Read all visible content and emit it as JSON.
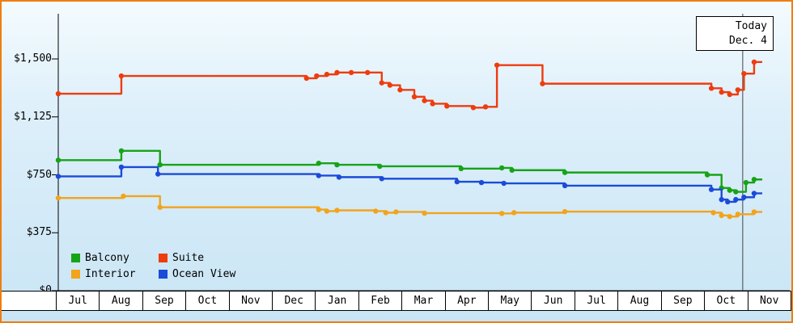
{
  "panel": {
    "border_color": "#ef7d10"
  },
  "today_box": {
    "line1": "Today",
    "line2": "Dec. 4"
  },
  "chart_data": {
    "type": "line",
    "step": true,
    "title": "",
    "xlabel": "",
    "ylabel": "",
    "ylim": [
      0,
      1500
    ],
    "x_max": 17.3,
    "today_x": 16.82,
    "yticks": [
      {
        "label": "$1,500",
        "value": 1500
      },
      {
        "label": "$1,125",
        "value": 1125
      },
      {
        "label": "$750",
        "value": 750
      },
      {
        "label": "$375",
        "value": 375
      },
      {
        "label": "$0",
        "value": 0
      }
    ],
    "months": [
      "Jul",
      "Aug",
      "Sep",
      "Oct",
      "Nov",
      "Dec",
      "Jan",
      "Feb",
      "Mar",
      "Apr",
      "May",
      "Jun",
      "Jul",
      "Aug",
      "Sep",
      "Oct",
      "Nov"
    ],
    "legend_position": "bottom-left",
    "series": [
      {
        "name": "Balcony",
        "color": "#17a317",
        "points": [
          [
            0,
            845
          ],
          [
            1.55,
            905
          ],
          [
            2.5,
            815
          ],
          [
            6.4,
            825
          ],
          [
            6.85,
            815
          ],
          [
            7.9,
            805
          ],
          [
            9.9,
            790
          ],
          [
            10.9,
            795
          ],
          [
            11.15,
            780
          ],
          [
            12.45,
            765
          ],
          [
            15.95,
            750
          ],
          [
            16.3,
            665
          ],
          [
            16.5,
            650
          ],
          [
            16.65,
            640
          ],
          [
            16.9,
            700
          ],
          [
            17.1,
            720
          ]
        ]
      },
      {
        "name": "Suite",
        "color": "#ee3c0f",
        "points": [
          [
            0,
            1275
          ],
          [
            1.55,
            1390
          ],
          [
            6.1,
            1375
          ],
          [
            6.35,
            1390
          ],
          [
            6.6,
            1400
          ],
          [
            6.85,
            1412
          ],
          [
            7.2,
            1412
          ],
          [
            7.6,
            1412
          ],
          [
            7.95,
            1345
          ],
          [
            8.15,
            1330
          ],
          [
            8.4,
            1300
          ],
          [
            8.75,
            1255
          ],
          [
            9.0,
            1230
          ],
          [
            9.2,
            1210
          ],
          [
            9.55,
            1195
          ],
          [
            10.2,
            1185
          ],
          [
            10.5,
            1190
          ],
          [
            10.78,
            1460
          ],
          [
            11.9,
            1340
          ],
          [
            16.05,
            1310
          ],
          [
            16.3,
            1285
          ],
          [
            16.5,
            1270
          ],
          [
            16.7,
            1300
          ],
          [
            16.85,
            1405
          ],
          [
            17.1,
            1480
          ]
        ]
      },
      {
        "name": "Interior",
        "color": "#f2a41a",
        "points": [
          [
            0,
            600
          ],
          [
            1.6,
            612
          ],
          [
            2.5,
            540
          ],
          [
            6.4,
            525
          ],
          [
            6.6,
            515
          ],
          [
            6.85,
            520
          ],
          [
            7.8,
            515
          ],
          [
            8.05,
            505
          ],
          [
            8.3,
            510
          ],
          [
            9.0,
            502
          ],
          [
            10.9,
            500
          ],
          [
            11.2,
            505
          ],
          [
            12.45,
            512
          ],
          [
            16.1,
            505
          ],
          [
            16.3,
            487
          ],
          [
            16.5,
            480
          ],
          [
            16.7,
            495
          ],
          [
            17.1,
            510
          ]
        ]
      },
      {
        "name": "Ocean View",
        "color": "#1b4bd8",
        "points": [
          [
            0,
            740
          ],
          [
            1.55,
            800
          ],
          [
            2.45,
            755
          ],
          [
            6.4,
            745
          ],
          [
            6.9,
            735
          ],
          [
            7.95,
            725
          ],
          [
            9.8,
            705
          ],
          [
            10.4,
            700
          ],
          [
            10.95,
            695
          ],
          [
            12.45,
            680
          ],
          [
            16.05,
            655
          ],
          [
            16.3,
            590
          ],
          [
            16.45,
            575
          ],
          [
            16.65,
            590
          ],
          [
            16.85,
            605
          ],
          [
            17.1,
            630
          ]
        ]
      }
    ]
  }
}
